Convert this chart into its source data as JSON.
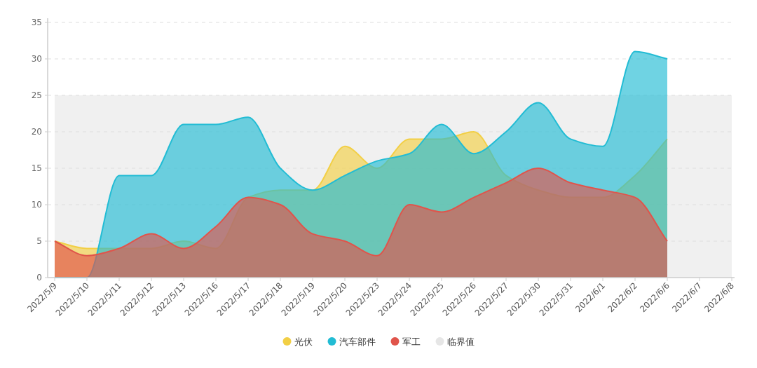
{
  "chart_data": {
    "type": "area",
    "categories": [
      "2022/5/9",
      "2022/5/10",
      "2022/5/11",
      "2022/5/12",
      "2022/5/13",
      "2022/5/16",
      "2022/5/17",
      "2022/5/18",
      "2022/5/19",
      "2022/5/20",
      "2022/5/23",
      "2022/5/24",
      "2022/5/25",
      "2022/5/26",
      "2022/5/27",
      "2022/5/30",
      "2022/5/31",
      "2022/6/1",
      "2022/6/2",
      "2022/6/6",
      "2022/6/7",
      "2022/6/8"
    ],
    "series": [
      {
        "name": "光伏",
        "color": "#f2cf45",
        "values": [
          5,
          4,
          4,
          4,
          5,
          4,
          11,
          12,
          12,
          18,
          15,
          19,
          19,
          20,
          14,
          12,
          11,
          11,
          14,
          19,
          null,
          null
        ]
      },
      {
        "name": "汽车部件",
        "color": "#22bcd4",
        "values": [
          0,
          0,
          14,
          14,
          21,
          21,
          22,
          15,
          12,
          14,
          16,
          17,
          21,
          17,
          20,
          24,
          19,
          18,
          31,
          30,
          null,
          null
        ]
      },
      {
        "name": "军工",
        "color": "#e0544b",
        "values": [
          5,
          3,
          4,
          6,
          4,
          7,
          11,
          10,
          6,
          5,
          3,
          10,
          9,
          11,
          13,
          15,
          13,
          12,
          11,
          5,
          null,
          null
        ]
      }
    ],
    "ylim": [
      0,
      35
    ],
    "yticks": [
      0,
      5,
      10,
      15,
      20,
      25,
      30,
      35
    ],
    "grid": "y",
    "legend": "bottom",
    "bands": [
      {
        "axis": "y",
        "from": 0,
        "to": 25,
        "label": "临界值",
        "color": "#f0f0f0"
      }
    ]
  }
}
